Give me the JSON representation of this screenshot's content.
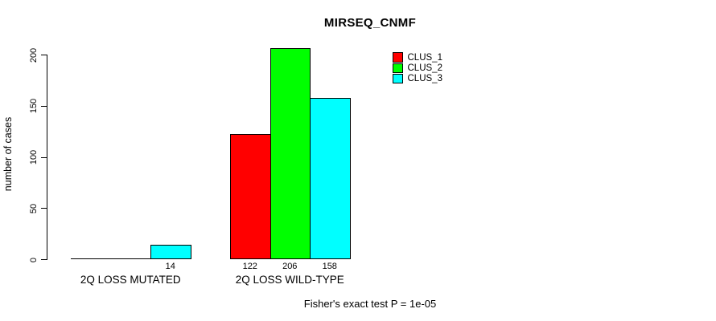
{
  "chart_data": {
    "type": "bar",
    "title": "MIRSEQ_CNMF",
    "categories": [
      "2Q LOSS MUTATED",
      "2Q LOSS WILD-TYPE"
    ],
    "series": [
      {
        "name": "CLUS_1",
        "color": "#ff0000",
        "values": [
          0,
          122
        ]
      },
      {
        "name": "CLUS_2",
        "color": "#00ff00",
        "values": [
          0,
          206
        ]
      },
      {
        "name": "CLUS_3",
        "color": "#00ffff",
        "values": [
          14,
          158
        ]
      }
    ],
    "xlabel": "",
    "ylabel": "number of cases",
    "ylim": [
      0,
      200
    ],
    "yticks": [
      0,
      50,
      100,
      150,
      200
    ],
    "grid": false,
    "legend": {
      "position": "top-right",
      "entries": [
        "CLUS_1",
        "CLUS_2",
        "CLUS_3"
      ]
    },
    "bar_value_labels_visible": [
      "14",
      "122",
      "206",
      "158"
    ],
    "annotation": "Fisher's exact test P = 1e-05",
    "outline_color": "#000000",
    "background_color": "#ffffff",
    "text_color": "#000000"
  }
}
